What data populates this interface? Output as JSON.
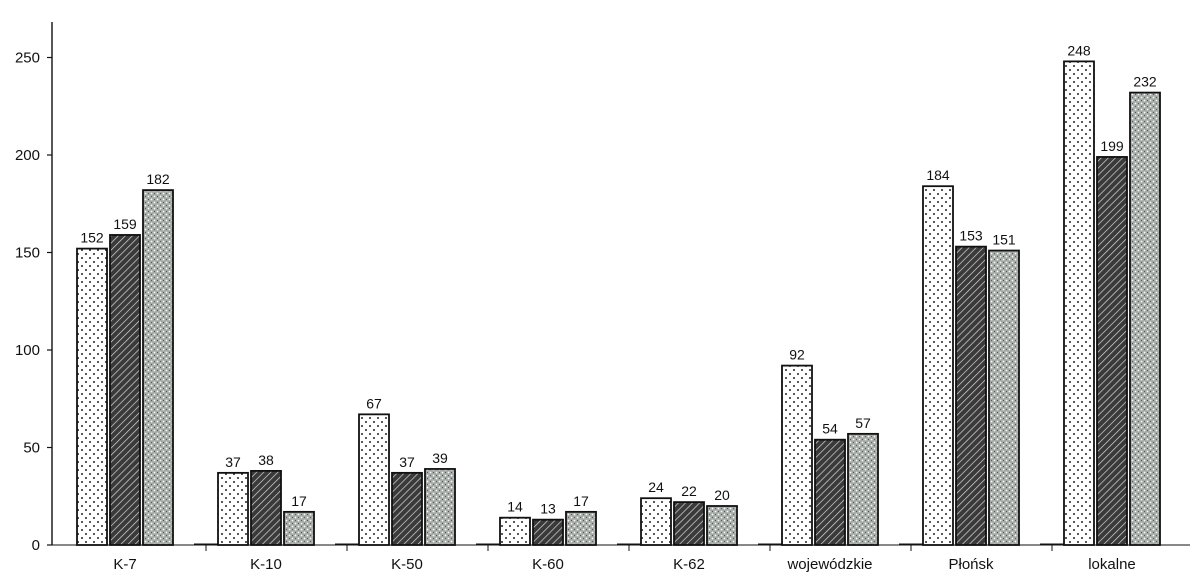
{
  "chart_data": {
    "type": "bar",
    "categories": [
      "K-7",
      "K-10",
      "K-50",
      "K-60",
      "K-62",
      "wojewódzkie",
      "Płońsk",
      "lokalne"
    ],
    "series": [
      {
        "pattern": "dots",
        "values": [
          152,
          37,
          67,
          14,
          24,
          92,
          184,
          248
        ]
      },
      {
        "pattern": "hatch",
        "values": [
          159,
          38,
          37,
          13,
          22,
          54,
          153,
          199
        ]
      },
      {
        "pattern": "grainy",
        "values": [
          182,
          17,
          39,
          17,
          20,
          57,
          151,
          232
        ]
      }
    ],
    "yticks": [
      "0",
      "50",
      "100",
      "150",
      "200",
      "250"
    ],
    "ylim": [
      0,
      260
    ],
    "grid": false,
    "legend": "none",
    "data_labels": true
  }
}
